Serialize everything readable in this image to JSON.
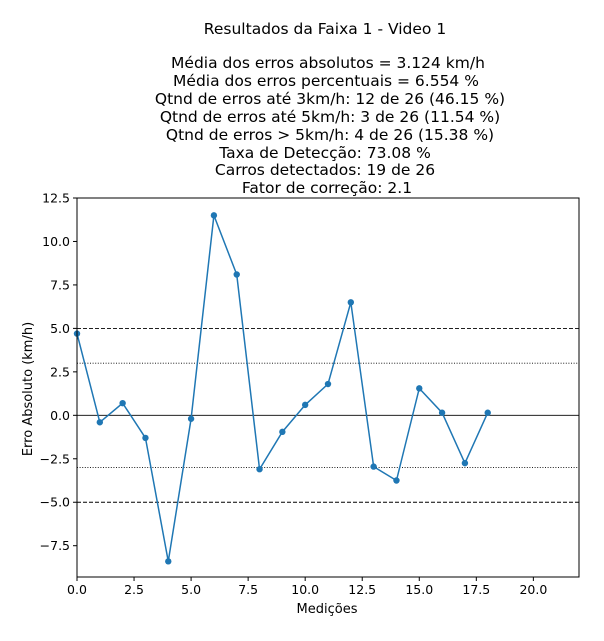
{
  "chart_data": {
    "type": "line",
    "title": "Resultados da Faixa 1 - Video 1",
    "subtitle_lines": [
      "Média dos erros absolutos =  3.124 km/h",
      "Média dos erros percentuais = 6.554 %",
      "Qtnd de erros até 3km/h: 12 de 26 (46.15 %)",
      "Qtnd de erros até 5km/h: 3 de 26 (11.54 %)",
      "Qtnd de erros > 5km/h: 4 de 26 (15.38 %)",
      "Taxa de Detecção: 73.08 %",
      "Carros detectados: 19 de 26",
      "Fator de correção: 2.1"
    ],
    "xlabel": "Medições",
    "ylabel": "Erro Absoluto (km/h)",
    "xlim": [
      0,
      22
    ],
    "ylim": [
      -9.3,
      12.5
    ],
    "xticks": [
      0,
      2.5,
      5,
      7.5,
      10,
      12.5,
      15,
      17.5,
      20
    ],
    "xtick_labels": [
      "0.0",
      "2.5",
      "5.0",
      "7.5",
      "10.0",
      "12.5",
      "15.0",
      "17.5",
      "20.0"
    ],
    "yticks": [
      12.5,
      10,
      7.5,
      5,
      2.5,
      0,
      -2.5,
      -5,
      -7.5
    ],
    "ytick_labels": [
      "12.5",
      "10.0",
      "7.5",
      "5.0",
      "2.5",
      "0.0",
      "−2.5",
      "−5.0",
      "−7.5"
    ],
    "grid": false,
    "reference_lines": [
      {
        "y": 5,
        "style": "dashed"
      },
      {
        "y": 3,
        "style": "dotted"
      },
      {
        "y": 0,
        "style": "solid"
      },
      {
        "y": -3,
        "style": "dotted"
      },
      {
        "y": -5,
        "style": "dashed"
      }
    ],
    "series": [
      {
        "color": "#1f77b4",
        "x": [
          0,
          1,
          2,
          3,
          4,
          5,
          6,
          7,
          8,
          9,
          10,
          11,
          12,
          13,
          14,
          15,
          16,
          17,
          18
        ],
        "y": [
          4.7,
          -0.4,
          0.7,
          -1.3,
          -8.4,
          -0.2,
          11.5,
          8.1,
          -3.1,
          -0.95,
          0.6,
          1.8,
          6.5,
          -2.95,
          -3.75,
          1.55,
          0.15,
          -2.75,
          0.15
        ]
      }
    ]
  }
}
